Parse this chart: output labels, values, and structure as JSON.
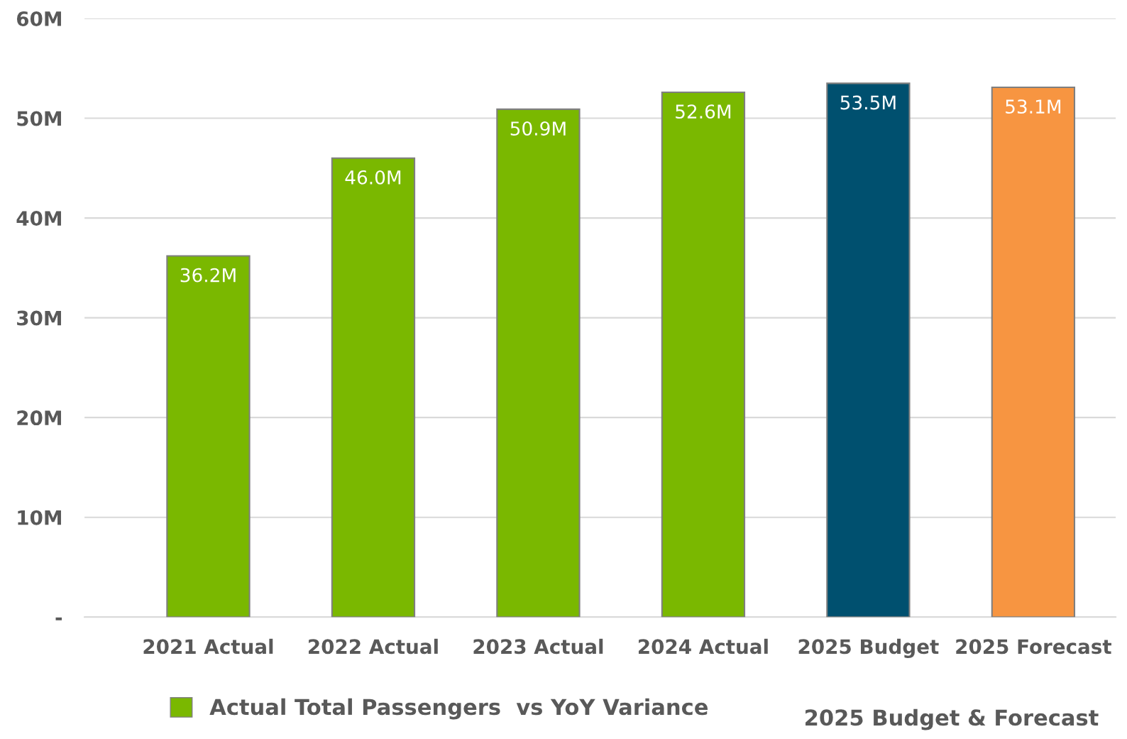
{
  "chart_data": {
    "type": "bar",
    "categories": [
      "2021 Actual",
      "2022 Actual",
      "2023 Actual",
      "2024 Actual",
      "2025 Budget",
      "2025 Forecast"
    ],
    "series": [
      {
        "name": "Actual Total Passengers  vs YoY Variance",
        "color": "#7ab800",
        "colors": [
          "#7ab800",
          "#7ab800",
          "#7ab800",
          "#7ab800",
          "#00506f",
          "#f79541"
        ],
        "values": [
          36.2,
          46.0,
          50.9,
          52.6,
          53.5,
          53.1
        ],
        "value_labels": [
          "36.2M",
          "46.0M",
          "50.9M",
          "52.6M",
          "53.5M",
          "53.1M"
        ]
      }
    ],
    "ylim": [
      0,
      60
    ],
    "yticks": [
      {
        "value": 0,
        "label": "-"
      },
      {
        "value": 10,
        "label": "10M"
      },
      {
        "value": 20,
        "label": "20M"
      },
      {
        "value": 30,
        "label": "30M"
      },
      {
        "value": 40,
        "label": "40M"
      },
      {
        "value": 50,
        "label": "50M"
      },
      {
        "value": 60,
        "label": "60M"
      }
    ],
    "grid": "y",
    "legend": "bottom",
    "annotations": [
      "2025 Budget & Forecast"
    ]
  }
}
